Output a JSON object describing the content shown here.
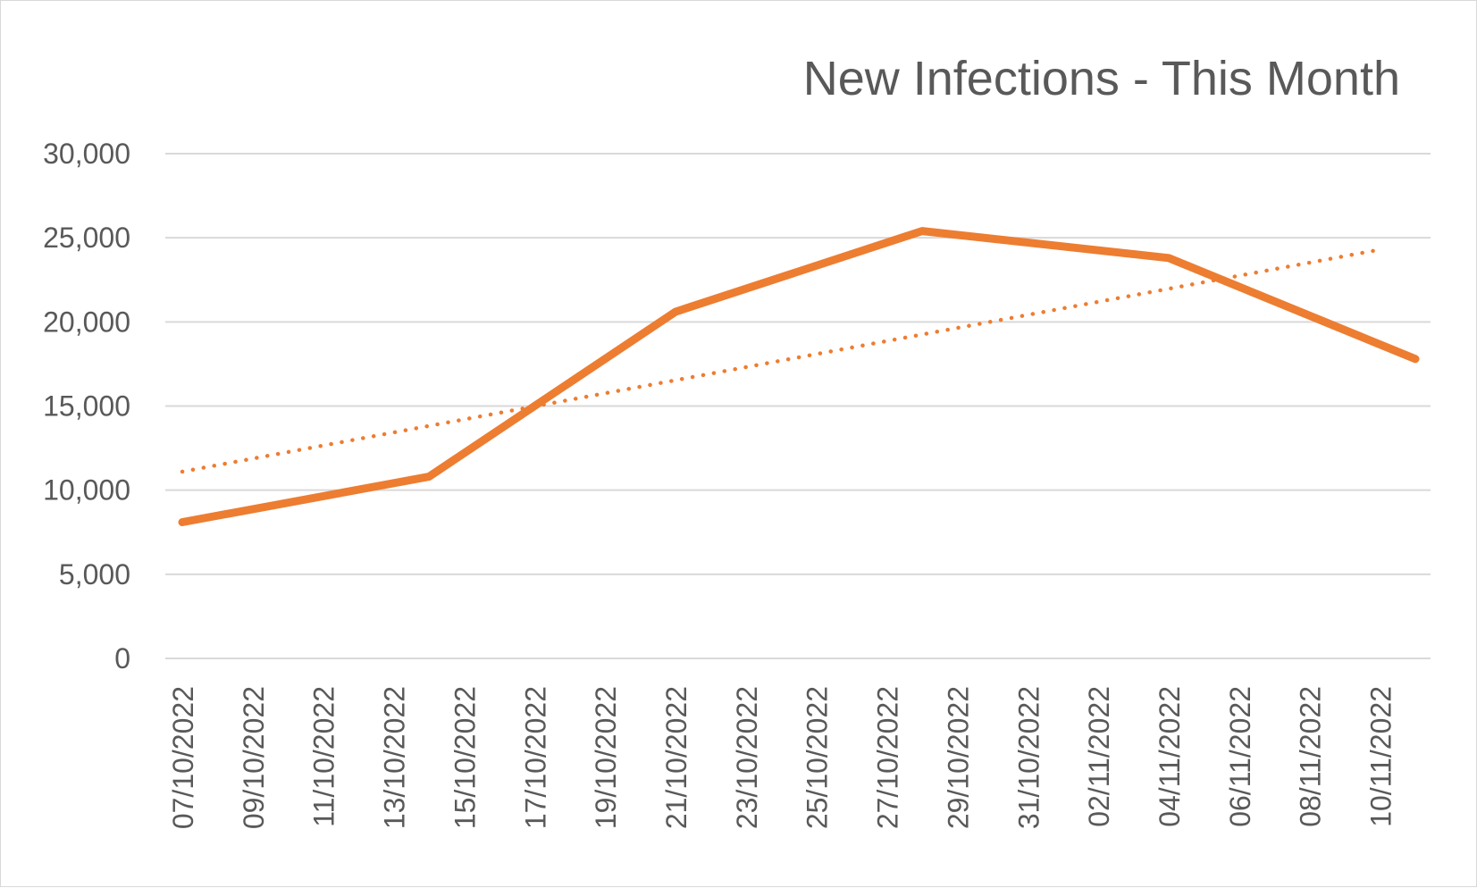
{
  "chart_data": {
    "type": "line",
    "title": "New Infections - This Month",
    "xlabel": "",
    "ylabel": "",
    "ylim": [
      0,
      30000
    ],
    "y_ticks": [
      0,
      5000,
      10000,
      15000,
      20000,
      25000,
      30000
    ],
    "y_tick_labels": [
      "0",
      "5,000",
      "10,000",
      "15,000",
      "20,000",
      "25,000",
      "30,000"
    ],
    "x_range": [
      "07/10/2022",
      "11/11/2022"
    ],
    "x_tick_labels": [
      "07/10/2022",
      "09/10/2022",
      "11/10/2022",
      "13/10/2022",
      "15/10/2022",
      "17/10/2022",
      "19/10/2022",
      "21/10/2022",
      "23/10/2022",
      "25/10/2022",
      "27/10/2022",
      "29/10/2022",
      "31/10/2022",
      "02/11/2022",
      "04/11/2022",
      "06/11/2022",
      "08/11/2022",
      "10/11/2022"
    ],
    "grid": true,
    "legend": "none",
    "series": [
      {
        "color": "#ed7d31",
        "points": [
          {
            "x": "07/10/2022",
            "y": 8100
          },
          {
            "x": "14/10/2022",
            "y": 10800
          },
          {
            "x": "21/10/2022",
            "y": 20600
          },
          {
            "x": "28/10/2022",
            "y": 25400
          },
          {
            "x": "04/11/2022",
            "y": 23800
          },
          {
            "x": "11/11/2022",
            "y": 17800
          }
        ]
      }
    ],
    "trendline": {
      "type": "linear",
      "style": "dotted",
      "color": "#ed7d31",
      "start": {
        "x": "07/10/2022",
        "y": 11100
      },
      "end": {
        "x": "10/11/2022",
        "y": 24300
      }
    }
  }
}
